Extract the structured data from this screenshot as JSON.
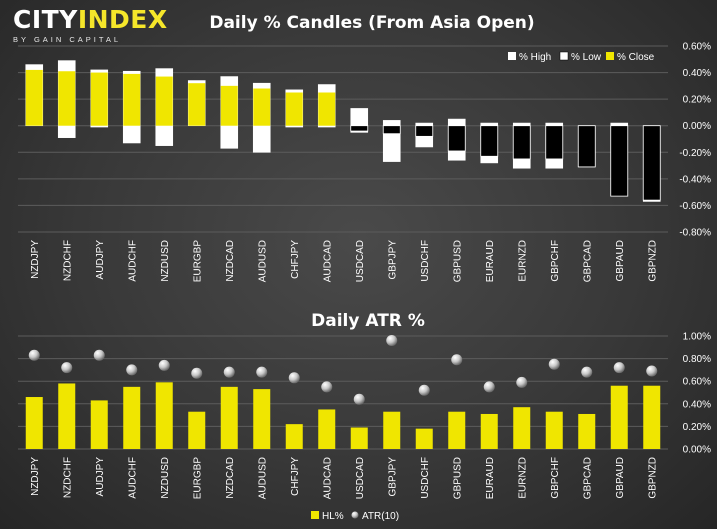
{
  "brand": {
    "logo_main_1": "CITY",
    "logo_main_2": "INDEX",
    "logo_tagline": "BY GAIN CAPITAL"
  },
  "colors": {
    "accent": "#f5e62a",
    "up": "#f0e600",
    "white": "#ffffff",
    "black": "#000000"
  },
  "chart_data": [
    {
      "type": "bar",
      "title": "Daily % Candles (From Asia Open)",
      "legend": [
        "% High",
        "% Low",
        "% Close"
      ],
      "legend_placement": "top-right",
      "categories": [
        "NZDJPY",
        "NZDCHF",
        "AUDJPY",
        "AUDCHF",
        "NZDUSD",
        "EURGBP",
        "NZDCAD",
        "AUDUSD",
        "CHFJPY",
        "AUDCAD",
        "USDCAD",
        "GBPJPY",
        "USDCHF",
        "GBPUSD",
        "EURAUD",
        "EURNZD",
        "GBPCHF",
        "GBPCAD",
        "GBPAUD",
        "GBPNZD"
      ],
      "series": [
        {
          "name": "% High",
          "values": [
            0.46,
            0.49,
            0.42,
            0.41,
            0.43,
            0.34,
            0.37,
            0.32,
            0.27,
            0.31,
            0.13,
            0.04,
            0.02,
            0.05,
            0.02,
            0.02,
            0.02,
            -0.3,
            0.02,
            -0.55
          ]
        },
        {
          "name": "% Low",
          "values": [
            0.0,
            -0.09,
            -0.01,
            -0.13,
            -0.15,
            0.0,
            -0.17,
            -0.2,
            -0.01,
            -0.01,
            -0.05,
            -0.27,
            -0.16,
            -0.26,
            -0.28,
            -0.32,
            -0.32,
            -0.31,
            -0.53,
            -0.57
          ]
        },
        {
          "name": "% Close",
          "values": [
            0.42,
            0.41,
            0.4,
            0.39,
            0.37,
            0.32,
            0.3,
            0.28,
            0.25,
            0.25,
            -0.04,
            -0.06,
            -0.08,
            -0.19,
            -0.23,
            -0.25,
            -0.25,
            -0.31,
            -0.53,
            -0.56
          ]
        }
      ],
      "yticks": [
        "0.60%",
        "0.40%",
        "0.20%",
        "0.00%",
        "-0.20%",
        "-0.40%",
        "-0.60%",
        "-0.80%"
      ],
      "ylim": [
        -0.8,
        0.6
      ],
      "grid": true
    },
    {
      "type": "bar",
      "title": "Daily ATR %",
      "legend": [
        "HL%",
        "ATR(10)"
      ],
      "legend_placement": "bottom",
      "categories": [
        "NZDJPY",
        "NZDCHF",
        "AUDJPY",
        "AUDCHF",
        "NZDUSD",
        "EURGBP",
        "NZDCAD",
        "AUDUSD",
        "CHFJPY",
        "AUDCAD",
        "USDCAD",
        "GBPJPY",
        "USDCHF",
        "GBPUSD",
        "EURAUD",
        "EURNZD",
        "GBPCHF",
        "GBPCAD",
        "GBPAUD",
        "GBPNZD"
      ],
      "series": [
        {
          "name": "HL%",
          "values": [
            0.46,
            0.58,
            0.43,
            0.55,
            0.59,
            0.33,
            0.55,
            0.53,
            0.22,
            0.35,
            0.19,
            0.33,
            0.18,
            0.33,
            0.31,
            0.37,
            0.33,
            0.31,
            0.56,
            0.56
          ]
        },
        {
          "name": "ATR(10)",
          "values": [
            0.83,
            0.72,
            0.83,
            0.7,
            0.74,
            0.67,
            0.68,
            0.68,
            0.63,
            0.55,
            0.44,
            0.96,
            0.52,
            0.79,
            0.55,
            0.59,
            0.75,
            0.68,
            0.72,
            0.69
          ]
        }
      ],
      "yticks": [
        "1.00%",
        "0.80%",
        "0.60%",
        "0.40%",
        "0.20%",
        "0.00%"
      ],
      "ylim": [
        0,
        1.0
      ],
      "grid": true
    }
  ]
}
